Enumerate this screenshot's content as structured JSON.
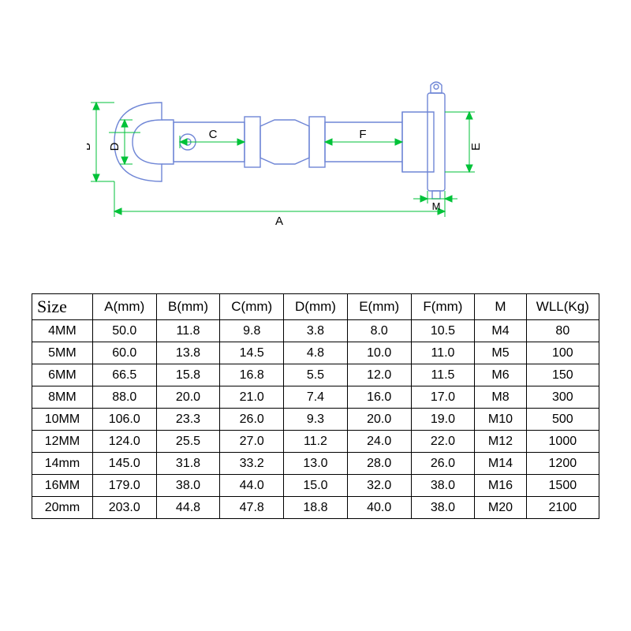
{
  "diagram": {
    "type": "engineering-drawing",
    "outline_color": "#6f86d6",
    "outline_width": 1.4,
    "dimension_color": "#00c238",
    "dimension_width": 1,
    "label_fontsize": 15,
    "label_color": "#000000",
    "labels": [
      "A",
      "B",
      "C",
      "D",
      "E",
      "F",
      "M"
    ]
  },
  "table": {
    "columns": [
      "Size",
      "A(mm)",
      "B(mm)",
      "C(mm)",
      "D(mm)",
      "E(mm)",
      "F(mm)",
      "M",
      "WLL(Kg)"
    ],
    "rows": [
      [
        "4MM",
        "50.0",
        "11.8",
        "9.8",
        "3.8",
        "8.0",
        "10.5",
        "M4",
        "80"
      ],
      [
        "5MM",
        "60.0",
        "13.8",
        "14.5",
        "4.8",
        "10.0",
        "11.0",
        "M5",
        "100"
      ],
      [
        "6MM",
        "66.5",
        "15.8",
        "16.8",
        "5.5",
        "12.0",
        "11.5",
        "M6",
        "150"
      ],
      [
        "8MM",
        "88.0",
        "20.0",
        "21.0",
        "7.4",
        "16.0",
        "17.0",
        "M8",
        "300"
      ],
      [
        "10MM",
        "106.0",
        "23.3",
        "26.0",
        "9.3",
        "20.0",
        "19.0",
        "M10",
        "500"
      ],
      [
        "12MM",
        "124.0",
        "25.5",
        "27.0",
        "11.2",
        "24.0",
        "22.0",
        "M12",
        "1000"
      ],
      [
        "14mm",
        "145.0",
        "31.8",
        "33.2",
        "13.0",
        "28.0",
        "26.0",
        "M14",
        "1200"
      ],
      [
        "16MM",
        "179.0",
        "38.0",
        "44.0",
        "15.0",
        "32.0",
        "38.0",
        "M16",
        "1500"
      ],
      [
        "20mm",
        "203.0",
        "44.8",
        "47.8",
        "18.8",
        "40.0",
        "38.0",
        "M20",
        "2100"
      ]
    ],
    "border_color": "#000000",
    "text_color": "#000000",
    "header_fontsize": 17,
    "cell_fontsize": 16,
    "size_header_fontsize": 22
  },
  "background_color": "#ffffff"
}
